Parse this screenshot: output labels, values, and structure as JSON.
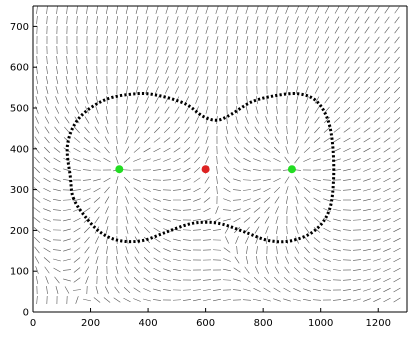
{
  "chart_data": {
    "type": "scatter",
    "title": "",
    "xlabel": "",
    "ylabel": "",
    "xlim": [
      0,
      1300
    ],
    "ylim": [
      0,
      750
    ],
    "x_ticks": [
      0,
      200,
      400,
      600,
      800,
      1000,
      1200
    ],
    "y_ticks": [
      0,
      100,
      200,
      300,
      400,
      500,
      600,
      700
    ],
    "x_tick_labels": [
      "0",
      "200",
      "400",
      "600",
      "800",
      "1000",
      "1200"
    ],
    "y_tick_labels": [
      "0",
      "100",
      "200",
      "300",
      "400",
      "500",
      "600",
      "700"
    ],
    "grid": false,
    "background_field": {
      "description_of_style": "short dark line segments on a regular grid showing direction",
      "uniform_direction_deg": 60,
      "sources": [
        {
          "x": 300,
          "y": 350
        },
        {
          "x": 900,
          "y": 350
        }
      ]
    },
    "points": [
      {
        "x": 300,
        "y": 350,
        "color": "#22dd22"
      },
      {
        "x": 600,
        "y": 350,
        "color": "#dd2222"
      },
      {
        "x": 900,
        "y": 350,
        "color": "#22dd22"
      }
    ],
    "boundary_curve": {
      "style": "dotted black closed curve",
      "points": [
        [
          140,
          280
        ],
        [
          180,
          235
        ],
        [
          235,
          195
        ],
        [
          300,
          175
        ],
        [
          380,
          175
        ],
        [
          460,
          195
        ],
        [
          540,
          215
        ],
        [
          600,
          220
        ],
        [
          660,
          215
        ],
        [
          740,
          195
        ],
        [
          820,
          175
        ],
        [
          900,
          175
        ],
        [
          980,
          200
        ],
        [
          1030,
          250
        ],
        [
          1045,
          330
        ],
        [
          1040,
          420
        ],
        [
          1020,
          480
        ],
        [
          980,
          520
        ],
        [
          920,
          535
        ],
        [
          840,
          530
        ],
        [
          760,
          515
        ],
        [
          690,
          485
        ],
        [
          640,
          470
        ],
        [
          590,
          480
        ],
        [
          530,
          510
        ],
        [
          440,
          530
        ],
        [
          360,
          535
        ],
        [
          250,
          520
        ],
        [
          160,
          475
        ],
        [
          120,
          410
        ],
        [
          130,
          330
        ]
      ]
    }
  }
}
